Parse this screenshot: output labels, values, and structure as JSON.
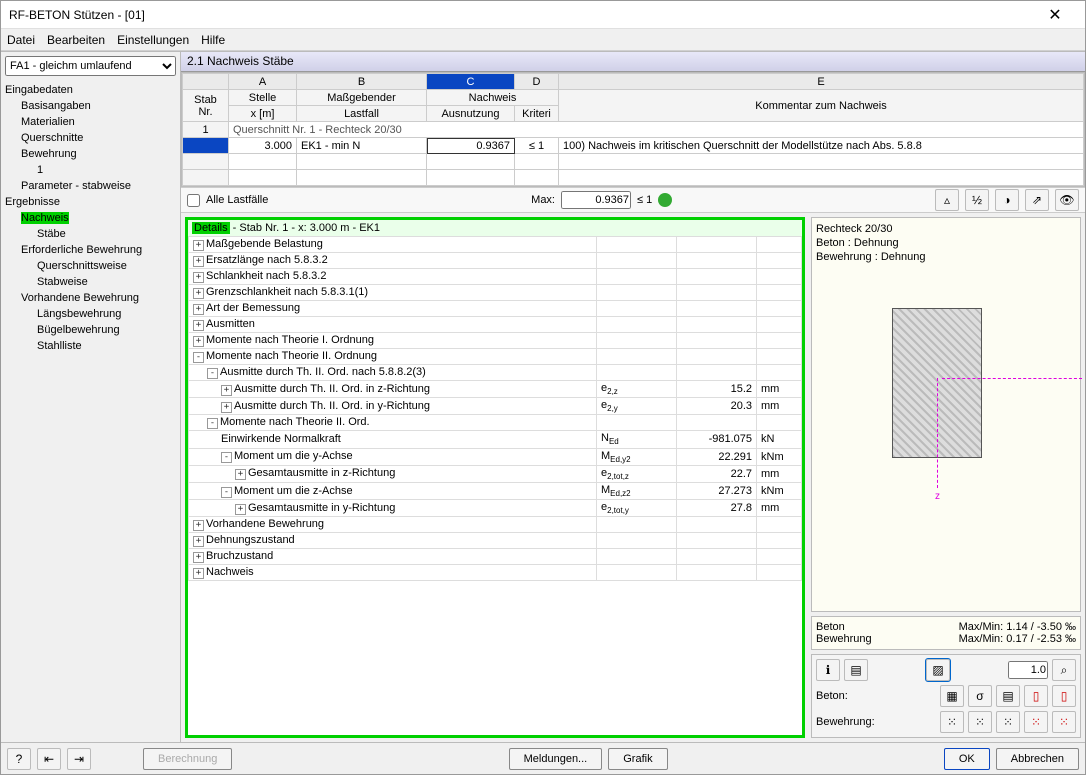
{
  "window": {
    "title": "RF-BETON Stützen - [01]"
  },
  "menu": {
    "items": [
      "Datei",
      "Bearbeiten",
      "Einstellungen",
      "Hilfe"
    ]
  },
  "sidebar": {
    "dropdown": "FA1 - gleichm umlaufend",
    "tree": {
      "eingabedaten": "Eingabedaten",
      "basisangaben": "Basisangaben",
      "materialien": "Materialien",
      "querschnitte": "Querschnitte",
      "bewehrung": "Bewehrung",
      "bewehrung1": "1",
      "parameter": "Parameter - stabweise",
      "ergebnisse": "Ergebnisse",
      "nachweis": "Nachweis",
      "staebe": "Stäbe",
      "erfbw": "Erforderliche Bewehrung",
      "querschnittsweise": "Querschnittsweise",
      "stabweise": "Stabweise",
      "vorhbw": "Vorhandene Bewehrung",
      "laengs": "Längsbewehrung",
      "buegel": "Bügelbewehrung",
      "stahl": "Stahlliste"
    }
  },
  "section": {
    "title": "2.1 Nachweis Stäbe"
  },
  "grid": {
    "cols": [
      "A",
      "B",
      "C",
      "D",
      "E"
    ],
    "head": {
      "stab": "Stab\nNr.",
      "stelle": "Stelle\nx [m]",
      "lastfall": "Maßgebender\nLastfall",
      "ausnutzung": "Nachweis\nAusnutzung",
      "kriteri": "Kriteri",
      "kommentar": "Kommentar zum Nachweis"
    },
    "group": {
      "nr": "1",
      "text": "Querschnitt Nr. 1 - Rechteck 20/30"
    },
    "row": {
      "x": "3.000",
      "lf": "EK1 - min N",
      "ausn": "0.9367",
      "krit": "≤ 1",
      "kommentar": "100)  Nachweis im kritischen Querschnitt der Modellstütze nach Abs. 5.8.8"
    }
  },
  "filter": {
    "alle": "Alle Lastfälle",
    "maxlabel": "Max:",
    "maxval": "0.9367",
    "crit": "≤ 1"
  },
  "details": {
    "header": {
      "details": "Details",
      "rest": " - Stab Nr. 1 - x: 3.000 m - EK1"
    },
    "rows": [
      {
        "type": "group",
        "icon": "+",
        "indent": 0,
        "label": "Maßgebende Belastung"
      },
      {
        "type": "group",
        "icon": "+",
        "indent": 0,
        "label": "Ersatzlänge nach 5.8.3.2"
      },
      {
        "type": "group",
        "icon": "+",
        "indent": 0,
        "label": "Schlankheit nach 5.8.3.2"
      },
      {
        "type": "group",
        "icon": "+",
        "indent": 0,
        "label": "Grenzschlankheit nach 5.8.3.1(1)"
      },
      {
        "type": "group",
        "icon": "+",
        "indent": 0,
        "label": "Art der Bemessung"
      },
      {
        "type": "group",
        "icon": "+",
        "indent": 0,
        "label": "Ausmitten"
      },
      {
        "type": "group",
        "icon": "+",
        "indent": 0,
        "label": "Momente nach Theorie I. Ordnung"
      },
      {
        "type": "group",
        "icon": "-",
        "indent": 0,
        "label": "Momente nach Theorie II. Ordnung"
      },
      {
        "type": "group",
        "icon": "-",
        "indent": 1,
        "label": "Ausmitte durch Th. II. Ord. nach 5.8.8.2(3)"
      },
      {
        "type": "data",
        "icon": "+",
        "indent": 2,
        "label": "Ausmitte durch Th. II. Ord. in z-Richtung",
        "sym": "e",
        "sub": "2,z",
        "val": "15.2",
        "unit": "mm"
      },
      {
        "type": "data",
        "icon": "+",
        "indent": 2,
        "label": "Ausmitte durch Th. II. Ord. in y-Richtung",
        "sym": "e",
        "sub": "2,y",
        "val": "20.3",
        "unit": "mm"
      },
      {
        "type": "group",
        "icon": "-",
        "indent": 1,
        "label": "Momente nach Theorie II. Ord."
      },
      {
        "type": "plain",
        "icon": "",
        "indent": 2,
        "label": "Einwirkende Normalkraft",
        "sym": "N",
        "sub": "Ed",
        "val": "-981.075",
        "unit": "kN"
      },
      {
        "type": "data",
        "icon": "-",
        "indent": 2,
        "label": "Moment um die y-Achse",
        "sym": "M",
        "sub": "Ed,y2",
        "val": "22.291",
        "unit": "kNm"
      },
      {
        "type": "data",
        "icon": "+",
        "indent": 3,
        "label": "Gesamtausmitte in z-Richtung",
        "sym": "e",
        "sub": "2,tot,z",
        "val": "22.7",
        "unit": "mm"
      },
      {
        "type": "data",
        "icon": "-",
        "indent": 2,
        "label": "Moment um die z-Achse",
        "sym": "M",
        "sub": "Ed,z2",
        "val": "27.273",
        "unit": "kNm"
      },
      {
        "type": "data",
        "icon": "+",
        "indent": 3,
        "label": "Gesamtausmitte in y-Richtung",
        "sym": "e",
        "sub": "2,tot,y",
        "val": "27.8",
        "unit": "mm"
      },
      {
        "type": "group",
        "icon": "+",
        "indent": 0,
        "label": "Vorhandene Bewehrung"
      },
      {
        "type": "group",
        "icon": "+",
        "indent": 0,
        "label": "Dehnungszustand"
      },
      {
        "type": "group",
        "icon": "+",
        "indent": 0,
        "label": "Bruchzustand"
      },
      {
        "type": "group",
        "icon": "+",
        "indent": 0,
        "label": "Nachweis"
      }
    ]
  },
  "preview": {
    "title": "Rechteck 20/30",
    "line1": "Beton : Dehnung",
    "line2": "Bewehrung : Dehnung",
    "strain": {
      "beton_l": "Beton",
      "beton_r": "Max/Min: 1.14 / -3.50 ‰",
      "bew_l": "Bewehrung",
      "bew_r": "Max/Min: 0.17 / -2.53 ‰"
    },
    "tools": {
      "zoom": "1.0",
      "beton_l": "Beton:",
      "bew_l": "Bewehrung:"
    }
  },
  "footer": {
    "berechnung": "Berechnung",
    "meldungen": "Meldungen...",
    "grafik": "Grafik",
    "ok": "OK",
    "abbrechen": "Abbrechen"
  },
  "style": {
    "highlight": "#00d000",
    "selection": "#0a46c2",
    "axis": "#e000e0"
  }
}
